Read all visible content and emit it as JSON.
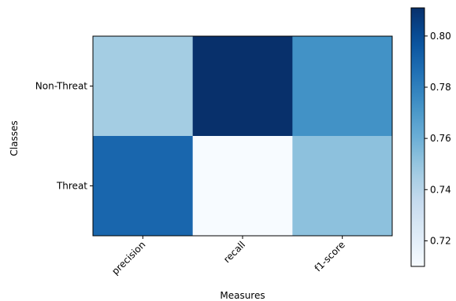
{
  "chart_data": {
    "type": "heatmap",
    "title": "",
    "xlabel": "Measures",
    "ylabel": "Classes",
    "x_categories": [
      "precision",
      "recall",
      "f1-score"
    ],
    "y_categories": [
      "Non-Threat",
      "Threat"
    ],
    "values": [
      [
        0.746,
        0.811,
        0.773
      ],
      [
        0.79,
        0.71,
        0.752
      ]
    ],
    "colormap": "Blues",
    "color_range": [
      0.71,
      0.811
    ],
    "colorbar": {
      "ticks": [
        0.72,
        0.74,
        0.76,
        0.78,
        0.8
      ],
      "tick_labels": [
        "0.72",
        "0.74",
        "0.76",
        "0.78",
        "0.80"
      ]
    },
    "x_tick_rotation_deg": 45,
    "grid": false
  }
}
